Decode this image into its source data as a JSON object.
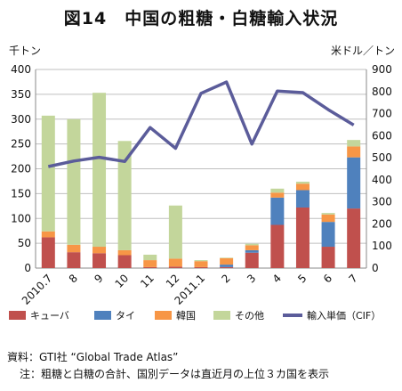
{
  "title": "図14　中国の粗糖・白糖輸入状況",
  "unit_left": "千トン",
  "unit_right": "米ドル／トン",
  "colors": {
    "cuba": "#C0504D",
    "thai": "#4F81BD",
    "korea": "#F79646",
    "other": "#C3D69B",
    "price": "#5B5C9A"
  },
  "chart_data": {
    "type": "bar",
    "stacked": true,
    "categories": [
      "2010.7",
      "8",
      "9",
      "10",
      "11",
      "12",
      "2011.1",
      "2",
      "3",
      "4",
      "5",
      "6",
      "7"
    ],
    "series": [
      {
        "name": "キューバ",
        "key": "cuba",
        "values": [
          62,
          32,
          30,
          26,
          2,
          3,
          2,
          2,
          31,
          87,
          122,
          43,
          120
        ]
      },
      {
        "name": "タイ",
        "key": "thai",
        "values": [
          0,
          0,
          0,
          0,
          0,
          0,
          0,
          5,
          5,
          55,
          35,
          50,
          103
        ]
      },
      {
        "name": "韓国",
        "key": "korea",
        "values": [
          12,
          15,
          13,
          10,
          14,
          16,
          12,
          13,
          10,
          10,
          13,
          15,
          22
        ]
      },
      {
        "name": "その他",
        "key": "other",
        "values": [
          233,
          253,
          310,
          220,
          11,
          107,
          2,
          1,
          3,
          8,
          4,
          3,
          13
        ]
      }
    ],
    "line_series": {
      "name": "輸入単価（CIF）",
      "axis": "right",
      "values": [
        460,
        485,
        502,
        483,
        637,
        543,
        792,
        843,
        562,
        802,
        795,
        718,
        648
      ]
    },
    "y_left": {
      "min": 0,
      "max": 400,
      "ticks": [
        0,
        50,
        100,
        150,
        200,
        250,
        300,
        350,
        400
      ]
    },
    "y_right": {
      "min": 0,
      "max": 900,
      "ticks": [
        0,
        100,
        200,
        300,
        400,
        500,
        600,
        700,
        800,
        900
      ]
    },
    "grid": true,
    "legend_position": "bottom"
  },
  "legend": {
    "cuba": "キューバ",
    "thai": "タイ",
    "korea": "韓国",
    "other": "その他",
    "price": "輸入単価（CIF）"
  },
  "notes": {
    "source": "資料：GTI社 “Global Trade Atlas”",
    "note": "注：粗糖と白糖の合計、国別データは直近月の上位３カ国を表示"
  }
}
